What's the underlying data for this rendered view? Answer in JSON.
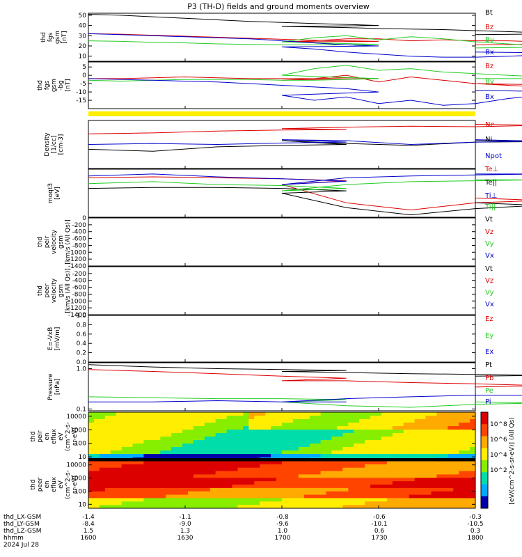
{
  "title": "P3 (TH-D) fields and ground moments overview",
  "colors": {
    "black": "#000000",
    "red": "#dd0000",
    "green": "#22cc22",
    "blue": "#0000cc",
    "yellow": "#ffee00"
  },
  "chart_data": [
    {
      "type": "line",
      "ylabel": [
        "thd",
        "fgs",
        "gsm",
        "[nT]"
      ],
      "ylim": [
        5,
        52
      ],
      "yticks": [
        10,
        20,
        30,
        40,
        50
      ],
      "series": [
        {
          "name": "Bt",
          "color": "black",
          "x": [
            1600,
            1610,
            1620,
            1630,
            1640,
            1650,
            1660,
            1670,
            1680,
            1690,
            1700,
            1710,
            1720,
            1730,
            1740,
            1750,
            1760,
            1770,
            1780,
            1790,
            1800
          ],
          "y": [
            51,
            50,
            48.5,
            47,
            45.5,
            44,
            43,
            42,
            41,
            40,
            39,
            38.5,
            38,
            37,
            36.5,
            36,
            35,
            34,
            33,
            32,
            31
          ]
        },
        {
          "name": "Bz",
          "color": "red",
          "x": [
            1600,
            1610,
            1620,
            1630,
            1640,
            1650,
            1660,
            1670,
            1680,
            1690,
            1700,
            1710,
            1720,
            1730,
            1740,
            1750,
            1760,
            1770,
            1780,
            1790,
            1800
          ],
          "y": [
            32,
            31.5,
            30.5,
            29.5,
            28.5,
            27.5,
            26.5,
            25.5,
            25,
            24.5,
            24,
            25,
            27,
            27,
            25,
            26,
            25,
            25,
            24,
            22,
            21
          ]
        },
        {
          "name": "By",
          "color": "green",
          "x": [
            1600,
            1610,
            1620,
            1630,
            1640,
            1650,
            1660,
            1670,
            1680,
            1690,
            1700,
            1710,
            1720,
            1730,
            1740,
            1750,
            1760,
            1770,
            1780,
            1790,
            1800
          ],
          "y": [
            25,
            24.5,
            23.5,
            23,
            22,
            21.5,
            21,
            21,
            21,
            21.5,
            24,
            28,
            30,
            26,
            29,
            27,
            24,
            22,
            20,
            19,
            18
          ]
        },
        {
          "name": "Bx",
          "color": "blue",
          "x": [
            1600,
            1610,
            1620,
            1630,
            1640,
            1650,
            1660,
            1670,
            1680,
            1690,
            1700,
            1710,
            1720,
            1730,
            1740,
            1750,
            1760,
            1770,
            1780,
            1790,
            1800
          ],
          "y": [
            32,
            31,
            30,
            29,
            28,
            27,
            25,
            23,
            21,
            20,
            19,
            17,
            14,
            12,
            10,
            9,
            9,
            10,
            11,
            13,
            14
          ]
        }
      ]
    },
    {
      "type": "line",
      "ylabel": [
        "thd",
        "fgs",
        "gsm",
        "-bg",
        "[nT]"
      ],
      "ylim": [
        -20,
        8
      ],
      "yticks": [
        -15,
        -10,
        -5,
        0,
        5
      ],
      "series": [
        {
          "name": "Bz",
          "color": "red",
          "x": [
            1600,
            1610,
            1620,
            1630,
            1640,
            1650,
            1660,
            1670,
            1680,
            1690,
            1700,
            1710,
            1720,
            1730,
            1740,
            1750,
            1760,
            1770,
            1780,
            1790,
            1800
          ],
          "y": [
            -2,
            -2,
            -1.5,
            -1,
            -1.5,
            -2,
            -2,
            -2,
            -1.5,
            -2,
            -3,
            -2,
            0,
            -4,
            -1,
            -3,
            -5,
            -6,
            -7,
            -6,
            -5
          ]
        },
        {
          "name": "By",
          "color": "green",
          "x": [
            1600,
            1610,
            1620,
            1630,
            1640,
            1650,
            1660,
            1670,
            1680,
            1690,
            1700,
            1710,
            1720,
            1730,
            1740,
            1750,
            1760,
            1770,
            1780,
            1790,
            1800
          ],
          "y": [
            -3,
            -3.5,
            -3,
            -2.5,
            -2.5,
            -2.5,
            -3,
            -3,
            -2.5,
            -2,
            0,
            4,
            6,
            3,
            4,
            2,
            1,
            0,
            -1,
            -2,
            -2
          ]
        },
        {
          "name": "Bx",
          "color": "blue",
          "x": [
            1600,
            1610,
            1620,
            1630,
            1640,
            1650,
            1660,
            1670,
            1680,
            1690,
            1700,
            1710,
            1720,
            1730,
            1740,
            1750,
            1760,
            1770,
            1780,
            1790,
            1800
          ],
          "y": [
            -2,
            -2.5,
            -3,
            -3.5,
            -4,
            -5,
            -6,
            -7,
            -8,
            -10,
            -12,
            -15,
            -13,
            -17,
            -15,
            -18,
            -17,
            -14,
            -12,
            -10,
            -9
          ]
        }
      ]
    },
    {
      "type": "line",
      "ylabel": [
        "Density",
        "[1/cc]",
        "[cm-3]"
      ],
      "ylim": [
        0,
        1
      ],
      "yticks": [],
      "series": [
        {
          "name": "Ne",
          "color": "red",
          "x": [
            1600,
            1620,
            1640,
            1660,
            1680,
            1700,
            1720,
            1740,
            1760,
            1780,
            1800
          ],
          "y": [
            0.72,
            0.74,
            0.78,
            0.8,
            0.81,
            0.83,
            0.86,
            0.88,
            0.87,
            0.9,
            0.92
          ]
        },
        {
          "name": "Ni",
          "color": "black",
          "x": [
            1600,
            1620,
            1640,
            1660,
            1680,
            1700,
            1720,
            1740,
            1760,
            1780,
            1800
          ],
          "y": [
            0.4,
            0.36,
            0.45,
            0.48,
            0.5,
            0.58,
            0.52,
            0.48,
            0.55,
            0.56,
            0.58
          ]
        },
        {
          "name": "Npot",
          "color": "blue",
          "x": [
            1600,
            1620,
            1640,
            1660,
            1680,
            1700,
            1720,
            1740,
            1760,
            1780,
            1800
          ],
          "y": [
            0.5,
            0.52,
            0.5,
            0.53,
            0.55,
            0.6,
            0.58,
            0.5,
            0.55,
            0.57,
            0.6
          ]
        }
      ]
    },
    {
      "type": "line",
      "ylabel": [
        "moqt3",
        "[eV]"
      ],
      "ylim": [
        0,
        1
      ],
      "yticks": [
        1000
      ],
      "series": [
        {
          "name": "Te⊥",
          "color": "red",
          "x": [
            1600,
            1620,
            1640,
            1660,
            1680,
            1700,
            1720,
            1740,
            1760,
            1780,
            1800
          ],
          "y": [
            0.82,
            0.84,
            0.82,
            0.8,
            0.76,
            0.68,
            0.3,
            0.15,
            0.3,
            0.35,
            0.4
          ]
        },
        {
          "name": "Te||",
          "color": "black",
          "x": [
            1600,
            1620,
            1640,
            1660,
            1680,
            1700,
            1720,
            1740,
            1760,
            1780,
            1800
          ],
          "y": [
            0.6,
            0.62,
            0.62,
            0.6,
            0.55,
            0.5,
            0.2,
            0.05,
            0.18,
            0.25,
            0.3
          ]
        },
        {
          "name": "Ti⊥",
          "color": "blue",
          "x": [
            1600,
            1620,
            1640,
            1660,
            1680,
            1700,
            1720,
            1740,
            1760,
            1780,
            1800
          ],
          "y": [
            0.86,
            0.9,
            0.84,
            0.8,
            0.75,
            0.68,
            0.82,
            0.86,
            0.88,
            0.9,
            0.9
          ]
        },
        {
          "name": "Ti||",
          "color": "green",
          "x": [
            1600,
            1620,
            1640,
            1660,
            1680,
            1700,
            1720,
            1740,
            1760,
            1780,
            1800
          ],
          "y": [
            0.7,
            0.74,
            0.68,
            0.66,
            0.6,
            0.55,
            0.68,
            0.74,
            0.76,
            0.78,
            0.78
          ]
        }
      ]
    },
    {
      "type": "line",
      "ylabel": [
        "thd",
        "peir",
        "velocity",
        "gsm",
        "[km/s (All Qs)]"
      ],
      "ylim": [
        -1400,
        0
      ],
      "yticks": [
        0,
        -200,
        -400,
        -600,
        -800,
        -1000,
        -1200,
        -1400
      ],
      "legend": [
        "Vt",
        "Vz",
        "Vy",
        "Vx"
      ],
      "series": []
    },
    {
      "type": "line",
      "ylabel": [
        "thd",
        "peer",
        "velocity",
        "gsm",
        "[km/s (All Qs)]"
      ],
      "ylim": [
        -1400,
        0
      ],
      "yticks": [
        -200,
        -400,
        -600,
        -800,
        -1000,
        -1200,
        -1400
      ],
      "legend": [
        "Vt",
        "Vz",
        "Vy",
        "Vx"
      ],
      "series": []
    },
    {
      "type": "line",
      "ylabel": [
        "E=-VxB",
        "[mV/m]"
      ],
      "ylim": [
        0,
        1
      ],
      "yticks": [
        0.0,
        0.2,
        0.4,
        0.6,
        0.8,
        1.0
      ],
      "legend": [
        "Ez",
        "Ey",
        "Ex"
      ],
      "series": []
    },
    {
      "type": "line",
      "ylabel": [
        "Pressure",
        "[nPa]"
      ],
      "ylim": [
        0.09,
        1.4
      ],
      "yticks": [
        0.1,
        1.0
      ],
      "log": true,
      "series": [
        {
          "name": "Pt",
          "color": "black",
          "x": [
            1600,
            1620,
            1640,
            1660,
            1680,
            1700,
            1720,
            1740,
            1760,
            1780,
            1800
          ],
          "y": [
            1.25,
            1.1,
            1.0,
            0.95,
            0.9,
            0.85,
            0.8,
            0.75,
            0.72,
            0.68,
            0.65
          ]
        },
        {
          "name": "Pb",
          "color": "red",
          "x": [
            1600,
            1620,
            1640,
            1660,
            1680,
            1700,
            1720,
            1740,
            1760,
            1780,
            1800
          ],
          "y": [
            0.95,
            0.85,
            0.75,
            0.65,
            0.58,
            0.5,
            0.5,
            0.45,
            0.42,
            0.38,
            0.35
          ]
        },
        {
          "name": "Pe",
          "color": "green",
          "x": [
            1600,
            1620,
            1640,
            1660,
            1680,
            1700,
            1720,
            1740,
            1760,
            1780,
            1800
          ],
          "y": [
            0.2,
            0.19,
            0.18,
            0.18,
            0.17,
            0.15,
            0.12,
            0.11,
            0.13,
            0.14,
            0.15
          ]
        },
        {
          "name": "Pi",
          "color": "blue",
          "x": [
            1600,
            1620,
            1640,
            1660,
            1680,
            1700,
            1720,
            1740,
            1760,
            1780,
            1800
          ],
          "y": [
            0.15,
            0.15,
            0.16,
            0.15,
            0.15,
            0.15,
            0.18,
            0.2,
            0.22,
            0.22,
            0.22
          ]
        }
      ]
    },
    {
      "type": "heatmap",
      "ylabel": [
        "thd",
        "peir",
        "en",
        "eflux",
        "eV",
        "(cm^2-s-",
        "sr-eV)"
      ],
      "ylim": [
        5,
        20000
      ],
      "yticks": [
        10,
        100,
        1000,
        10000
      ],
      "log": true
    },
    {
      "type": "heatmap",
      "ylabel": [
        "thd",
        "peer",
        "en",
        "eflux",
        "eV",
        "(cm^2-s-",
        "sr-eV)"
      ],
      "ylim": [
        5,
        20000
      ],
      "yticks": [
        10,
        100,
        1000,
        10000
      ],
      "log": true
    }
  ],
  "colorbar": {
    "label": "[eV/(cm^2-s-sr-eV)] (All Qs)",
    "ticks": [
      "10^8",
      "10^6",
      "10^4",
      "10^2"
    ]
  },
  "xaxis": {
    "rows": [
      {
        "label": "thd_LX-GSM",
        "values": [
          "-1.4",
          "-1.1",
          "-0.8",
          "-0.6",
          "-0.3"
        ]
      },
      {
        "label": "thd_LY-GSM",
        "values": [
          "-8.4",
          "-9.0",
          "-9.6",
          "-10.1",
          "-10.5"
        ]
      },
      {
        "label": "thd_LZ-GSM",
        "values": [
          "1.5",
          "1.3",
          "1.0",
          "0.6",
          "0.3"
        ]
      },
      {
        "label": "hhmm",
        "values": [
          "1600",
          "1630",
          "1700",
          "1730",
          "1800"
        ]
      }
    ],
    "date": "2024 Jul 28"
  }
}
